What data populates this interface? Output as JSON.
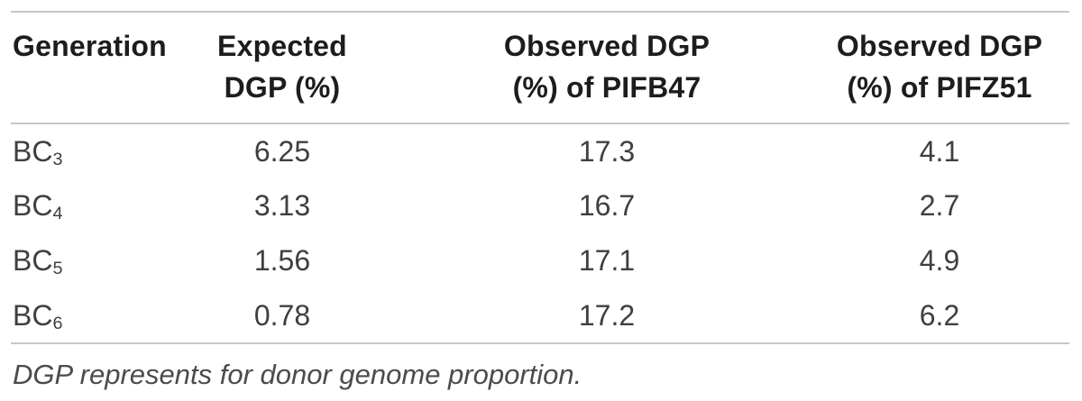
{
  "table": {
    "headers": [
      {
        "line1": "Generation",
        "line2": ""
      },
      {
        "line1": "Expected",
        "line2": "DGP (%)"
      },
      {
        "line1": "Observed DGP",
        "line2": "(%) of PIFB47"
      },
      {
        "line1": "Observed DGP",
        "line2": "(%) of PIFZ51"
      }
    ],
    "rows": [
      {
        "gen_base": "BC",
        "gen_sub": "3",
        "expected": "6.25",
        "pifb47": "17.3",
        "pifz51": "4.1"
      },
      {
        "gen_base": "BC",
        "gen_sub": "4",
        "expected": "3.13",
        "pifb47": "16.7",
        "pifz51": "2.7"
      },
      {
        "gen_base": "BC",
        "gen_sub": "5",
        "expected": "1.56",
        "pifb47": "17.1",
        "pifz51": "4.9"
      },
      {
        "gen_base": "BC",
        "gen_sub": "6",
        "expected": "0.78",
        "pifb47": "17.2",
        "pifz51": "6.2"
      }
    ],
    "footnote": "DGP represents for donor genome proportion."
  },
  "chart_data": {
    "type": "table",
    "columns": [
      "Generation",
      "Expected DGP (%)",
      "Observed DGP (%) of PIFB47",
      "Observed DGP (%) of PIFZ51"
    ],
    "rows": [
      [
        "BC3",
        6.25,
        17.3,
        4.1
      ],
      [
        "BC4",
        3.13,
        16.7,
        2.7
      ],
      [
        "BC5",
        1.56,
        17.1,
        4.9
      ],
      [
        "BC6",
        0.78,
        17.2,
        6.2
      ]
    ],
    "footnote": "DGP represents for donor genome proportion."
  },
  "colors": {
    "background": "#ffffff",
    "rule": "#c7c7c7",
    "header_text": "#1d1d1d",
    "body_text": "#3f3f3f",
    "footnote_text": "#4b4b4b"
  }
}
